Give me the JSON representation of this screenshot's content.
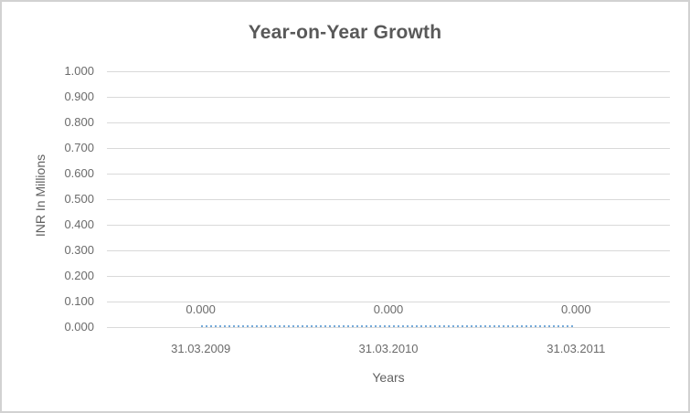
{
  "chart_data": {
    "type": "line",
    "title": "Year-on-Year Growth",
    "xlabel": "Years",
    "ylabel": "INR In Millions",
    "categories": [
      "31.03.2009",
      "31.03.2010",
      "31.03.2011"
    ],
    "values": [
      0.0,
      0.0,
      0.0
    ],
    "data_labels": [
      "0.000",
      "0.000",
      "0.000"
    ],
    "ylim": [
      0.0,
      1.0
    ],
    "ytick_labels_top_to_bottom": [
      "1.000",
      "0.900",
      "0.800",
      "0.700",
      "0.600",
      "0.500",
      "0.400",
      "0.300",
      "0.200",
      "0.100",
      "0.000"
    ],
    "grid": true,
    "legend": false,
    "line_style": "dotted",
    "colors": {
      "line": "#74a9d8",
      "gridline": "#d9d9d9",
      "title": "#595959",
      "labels": "#6b6b6b",
      "axis_titles": "#616161",
      "border": "#d2d2d2"
    }
  }
}
